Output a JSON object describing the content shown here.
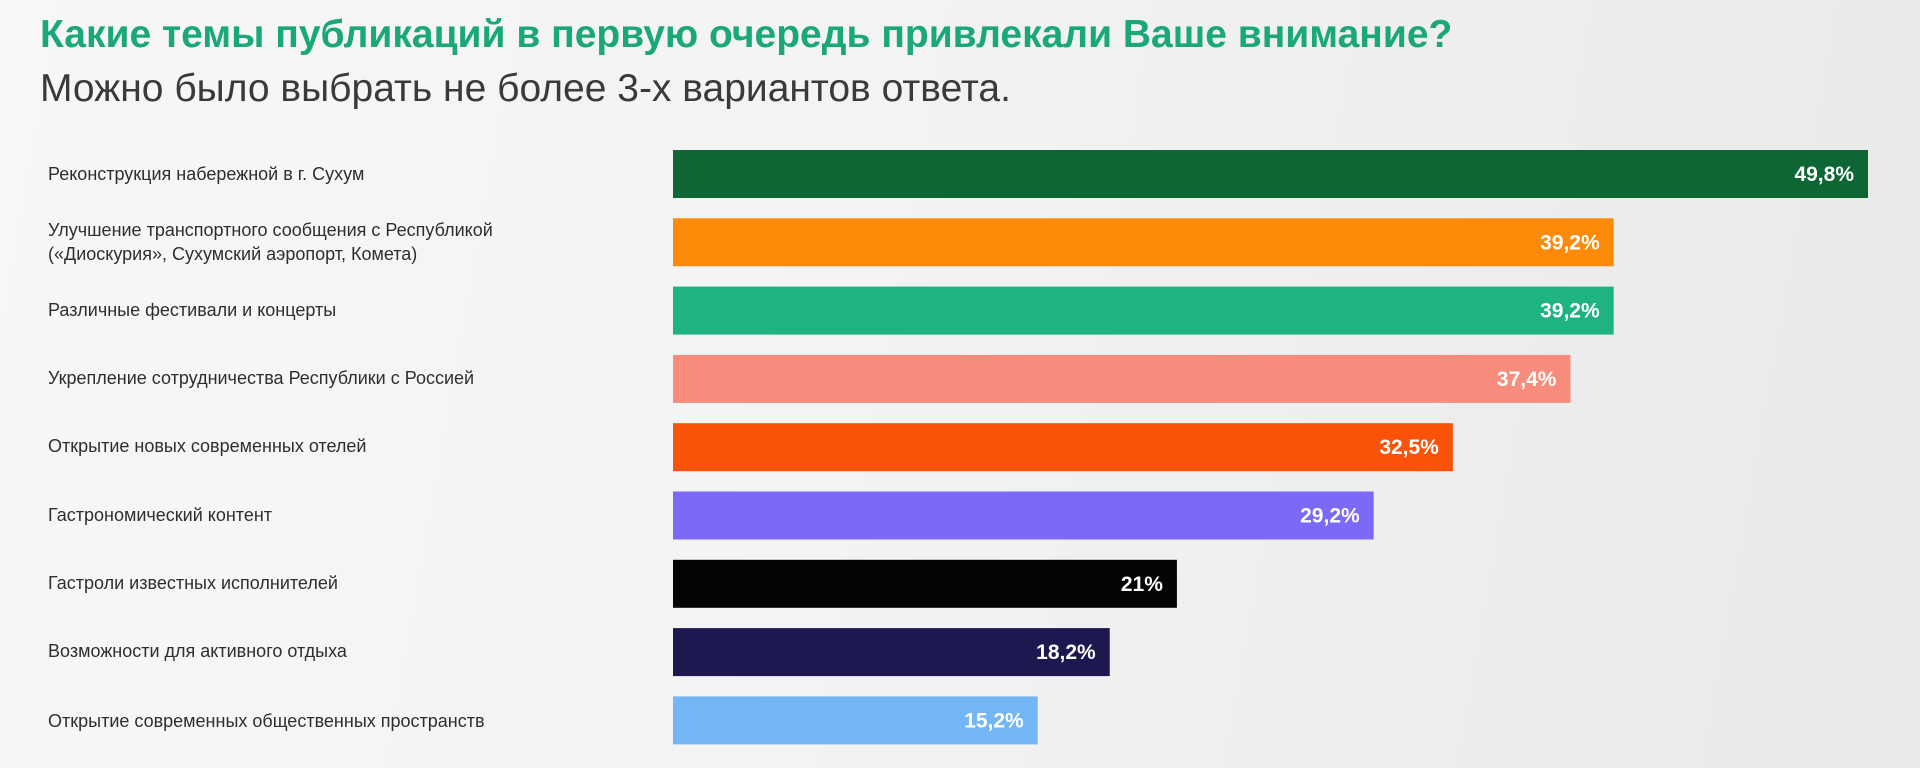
{
  "header": {
    "title": "Какие темы публикаций в первую очередь привлекали Ваше внимание?",
    "subtitle": "Можно было выбрать не более 3-х вариантов ответа."
  },
  "chart_data": {
    "type": "bar",
    "orientation": "horizontal",
    "categories": [
      "Реконструкция набережной в г. Сухум",
      "Улучшение транспортного сообщения с Республикой\n(«Диоскурия», Сухумский аэропорт, Комета)",
      "Различные фестивали и концерты",
      "Укрепление сотрудничества Республики с Россией",
      "Открытие новых современных отелей",
      "Гастрономический контент",
      "Гастроли известных исполнителей",
      "Возможности для активного отдыха",
      "Открытие современных общественных пространств"
    ],
    "values": [
      49.8,
      39.2,
      39.2,
      37.4,
      32.5,
      29.2,
      21,
      18.2,
      15.2
    ],
    "value_labels": [
      "49,8%",
      "39,2%",
      "39,2%",
      "37,4%",
      "32,5%",
      "29,2%",
      "21%",
      "18,2%",
      "15,2%"
    ],
    "colors": [
      "#0d6634",
      "#fd8a08",
      "#1eb381",
      "#f78c7c",
      "#fa5209",
      "#7c69f7",
      "#050505",
      "#1e1850",
      "#74b6f5"
    ],
    "label_color": "#ffffff",
    "xlim": [
      0,
      49.8
    ],
    "grid": false,
    "legend": "none"
  }
}
